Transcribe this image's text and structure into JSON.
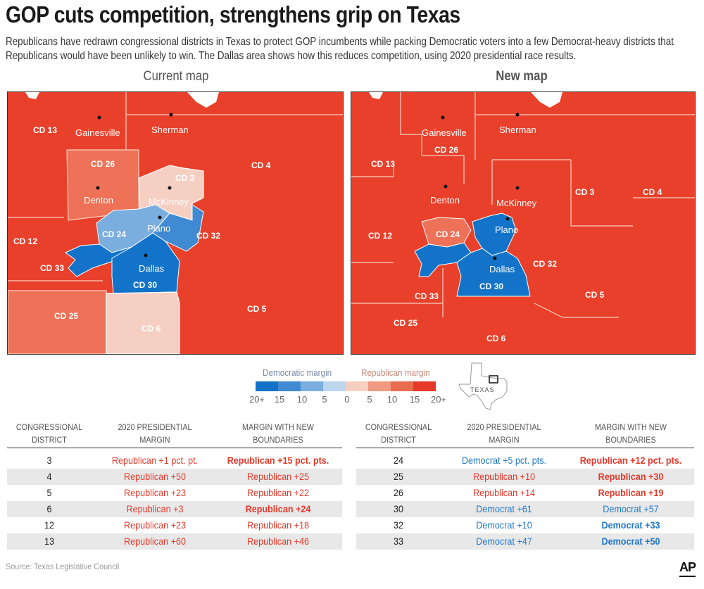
{
  "headline": "GOP cuts competition, strengthens grip on Texas",
  "dek": "Republicans have redrawn congressional districts in Texas to protect GOP incumbents while packing Democratic voters into a few Democrat-heavy districts that Republicans would have been unlikely to win. The Dallas area shows how this reduces competition, using 2020 presidential race results.",
  "maps": {
    "current": {
      "title": "Current map",
      "districts": [
        "CD 13",
        "CD 26",
        "CD 3",
        "CD 4",
        "CD 24",
        "CD 32",
        "CD 12",
        "CD 33",
        "CD 30",
        "CD 25",
        "CD 6",
        "CD 5"
      ],
      "cities": [
        "Gainesville",
        "Sherman",
        "Denton",
        "McKinney",
        "Plano",
        "Dallas"
      ]
    },
    "new": {
      "title": "New map",
      "districts": [
        "CD 26",
        "CD 13",
        "CD 3",
        "CD 4",
        "CD 12",
        "CD 24",
        "CD 32",
        "CD 33",
        "CD 30",
        "CD 25",
        "CD 5",
        "CD 6"
      ],
      "cities": [
        "Gainesville",
        "Sherman",
        "Denton",
        "McKinney",
        "Plano",
        "Dallas"
      ]
    }
  },
  "legend": {
    "dem_title": "Democratic margin",
    "rep_title": "Republican margin",
    "ticks": [
      "20+",
      "15",
      "10",
      "5",
      "0",
      "5",
      "10",
      "15",
      "20+"
    ],
    "colors": [
      "#1273c8",
      "#3f8ad2",
      "#7aaede",
      "#bcd6ee",
      "#f6cfc3",
      "#f09a82",
      "#ea6c4f",
      "#e5392a"
    ]
  },
  "inset": {
    "label": "TEXAS"
  },
  "table_headers": {
    "district": [
      "CONGRESSIONAL",
      "DISTRICT"
    ],
    "presidential": [
      "2020 PRESIDENTIAL",
      "MARGIN"
    ],
    "new_margin": [
      "MARGIN WITH NEW",
      "BOUNDARIES"
    ]
  },
  "table_left": [
    {
      "district": "3",
      "margin_2020": "Republican +1 pct. pt.",
      "new_margin": "Republican +15 pct. pts."
    },
    {
      "district": "4",
      "margin_2020": "Republican +50",
      "new_margin": "Republican +25"
    },
    {
      "district": "5",
      "margin_2020": "Republican +23",
      "new_margin": "Republican +22"
    },
    {
      "district": "6",
      "margin_2020": "Republican +3",
      "new_margin": "Republican +24"
    },
    {
      "district": "12",
      "margin_2020": "Republican +23",
      "new_margin": "Republican +18"
    },
    {
      "district": "13",
      "margin_2020": "Republican +60",
      "new_margin": "Republican +46"
    }
  ],
  "table_right": [
    {
      "district": "24",
      "margin_2020": "Democrat +5 pct. pts.",
      "new_margin": "Republican +12 pct. pts."
    },
    {
      "district": "25",
      "margin_2020": "Republican +10",
      "new_margin": "Republican +30"
    },
    {
      "district": "26",
      "margin_2020": "Republican +14",
      "new_margin": "Republican +19"
    },
    {
      "district": "30",
      "margin_2020": "Democrat +61",
      "new_margin": "Democrat +57"
    },
    {
      "district": "32",
      "margin_2020": "Democrat +10",
      "new_margin": "Democrat +33"
    },
    {
      "district": "33",
      "margin_2020": "Democrat +47",
      "new_margin": "Democrat +50"
    }
  ],
  "source": "Source: Texas Legislative Council",
  "credit": "AP"
}
